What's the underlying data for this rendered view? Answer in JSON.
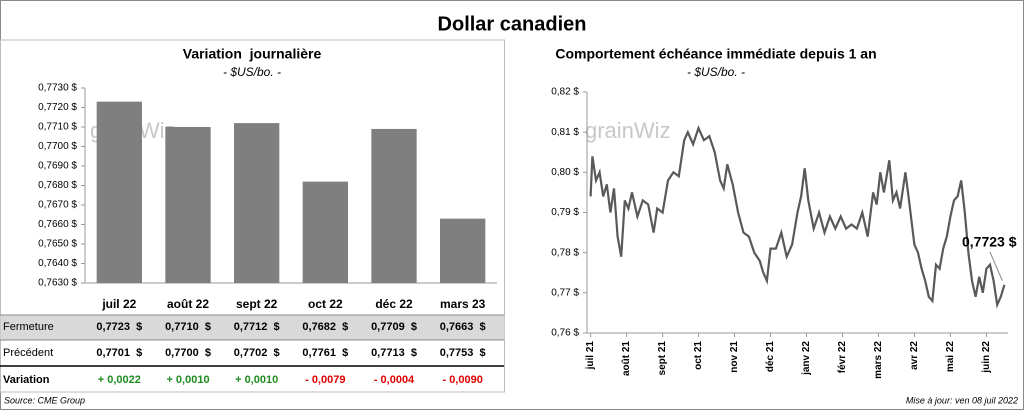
{
  "title": "Dollar canadien",
  "source": "Source: CME Group",
  "updated": "Mise à jour: ven 08 juil 2022",
  "chart_data": [
    {
      "type": "bar",
      "title": "Variation  journalière",
      "subtitle": "- $US/bo. -",
      "watermark": "grainWiz",
      "categories": [
        "juil 22",
        "août 22",
        "sept 22",
        "oct 22",
        "déc 22",
        "mars 23"
      ],
      "values": [
        0.7723,
        0.771,
        0.7712,
        0.7682,
        0.7709,
        0.7663
      ],
      "color": "#7f7f7f",
      "ylim": [
        0.763,
        0.773
      ],
      "yticks": [
        {
          "value": 0.763,
          "label": "0,7630 $"
        },
        {
          "value": 0.764,
          "label": "0,7640 $"
        },
        {
          "value": 0.765,
          "label": "0,7650 $"
        },
        {
          "value": 0.766,
          "label": "0,7660 $"
        },
        {
          "value": 0.767,
          "label": "0,7670 $"
        },
        {
          "value": 0.768,
          "label": "0,7680 $"
        },
        {
          "value": 0.769,
          "label": "0,7690 $"
        },
        {
          "value": 0.77,
          "label": "0,7700 $"
        },
        {
          "value": 0.771,
          "label": "0,7710 $"
        },
        {
          "value": 0.772,
          "label": "0,7720 $"
        },
        {
          "value": 0.773,
          "label": "0,7730 $"
        }
      ],
      "grid": false
    },
    {
      "type": "line",
      "title": "Comportement échéance immédiate depuis 1 an",
      "subtitle": "- $US/bo. -",
      "watermark": "grainWiz",
      "annotation": {
        "text": "0,7723 $"
      },
      "x": [
        0,
        0.05,
        0.15,
        0.25,
        0.35,
        0.45,
        0.55,
        0.65,
        0.75,
        0.85,
        0.95,
        1.05,
        1.15,
        1.3,
        1.45,
        1.6,
        1.75,
        1.85,
        2.0,
        2.15,
        2.3,
        2.45,
        2.6,
        2.7,
        2.85,
        3.0,
        3.15,
        3.3,
        3.45,
        3.6,
        3.7,
        3.8,
        3.95,
        4.1,
        4.25,
        4.4,
        4.55,
        4.7,
        4.8,
        4.9,
        5.0,
        5.15,
        5.3,
        5.45,
        5.6,
        5.75,
        5.85,
        5.95,
        6.05,
        6.2,
        6.35,
        6.5,
        6.65,
        6.8,
        6.95,
        7.1,
        7.25,
        7.4,
        7.55,
        7.7,
        7.85,
        7.95,
        8.05,
        8.15,
        8.3,
        8.4,
        8.5,
        8.6,
        8.75,
        8.85,
        9.0,
        9.1,
        9.2,
        9.3,
        9.4,
        9.5,
        9.6,
        9.7,
        9.8,
        9.9,
        10.0,
        10.1,
        10.2,
        10.3,
        10.4,
        10.5,
        10.6,
        10.7,
        10.8,
        10.9,
        11.0,
        11.1,
        11.2,
        11.3,
        11.4,
        11.5
      ],
      "series": [
        {
          "name": "Dollar canadien",
          "color": "#595959",
          "values": [
            0.794,
            0.804,
            0.798,
            0.8,
            0.794,
            0.797,
            0.79,
            0.796,
            0.784,
            0.779,
            0.793,
            0.791,
            0.795,
            0.789,
            0.793,
            0.792,
            0.785,
            0.791,
            0.79,
            0.798,
            0.8,
            0.799,
            0.808,
            0.81,
            0.807,
            0.811,
            0.808,
            0.809,
            0.805,
            0.798,
            0.796,
            0.802,
            0.797,
            0.79,
            0.785,
            0.784,
            0.78,
            0.778,
            0.775,
            0.773,
            0.781,
            0.781,
            0.785,
            0.779,
            0.782,
            0.79,
            0.794,
            0.801,
            0.793,
            0.786,
            0.79,
            0.785,
            0.789,
            0.786,
            0.789,
            0.786,
            0.787,
            0.786,
            0.79,
            0.784,
            0.795,
            0.792,
            0.8,
            0.795,
            0.803,
            0.793,
            0.795,
            0.791,
            0.8,
            0.793,
            0.782,
            0.78,
            0.776,
            0.773,
            0.769,
            0.768,
            0.777,
            0.776,
            0.781,
            0.784,
            0.789,
            0.793,
            0.794,
            0.798,
            0.79,
            0.78,
            0.773,
            0.769,
            0.774,
            0.77,
            0.776,
            0.777,
            0.773,
            0.767,
            0.769,
            0.772
          ]
        }
      ],
      "xlim": [
        -0.1,
        11.6
      ],
      "xticks": [
        {
          "value": 0,
          "label": "juil 21"
        },
        {
          "value": 1,
          "label": "août 21"
        },
        {
          "value": 2,
          "label": "sept 21"
        },
        {
          "value": 3,
          "label": "oct 21"
        },
        {
          "value": 4,
          "label": "nov 21"
        },
        {
          "value": 5,
          "label": "déc 21"
        },
        {
          "value": 6,
          "label": "janv 22"
        },
        {
          "value": 7,
          "label": "févr 22"
        },
        {
          "value": 8,
          "label": "mars 22"
        },
        {
          "value": 9,
          "label": "avr 22"
        },
        {
          "value": 10,
          "label": "mai 22"
        },
        {
          "value": 11,
          "label": "juin 22"
        }
      ],
      "ylim": [
        0.76,
        0.82
      ],
      "yticks": [
        {
          "value": 0.76,
          "label": "0,76 $"
        },
        {
          "value": 0.77,
          "label": "0,77 $"
        },
        {
          "value": 0.78,
          "label": "0,78 $"
        },
        {
          "value": 0.79,
          "label": "0,79 $"
        },
        {
          "value": 0.8,
          "label": "0,80 $"
        },
        {
          "value": 0.81,
          "label": "0,81 $"
        },
        {
          "value": 0.82,
          "label": "0,82 $"
        }
      ],
      "grid": false
    }
  ],
  "table": {
    "rows": [
      {
        "label": "Fermeture",
        "cells": [
          "0,7723  $",
          "0,7710  $",
          "0,7712  $",
          "0,7682  $",
          "0,7709  $",
          "0,7663  $"
        ]
      },
      {
        "label": "Précédent",
        "cells": [
          "0,7701  $",
          "0,7700  $",
          "0,7702  $",
          "0,7761  $",
          "0,7713  $",
          "0,7753  $"
        ]
      },
      {
        "label": "Variation",
        "cells": [
          "+ 0,0022",
          "+ 0,0010",
          "+ 0,0010",
          "- 0,0079",
          "- 0,0004",
          "- 0,0090"
        ],
        "colors": [
          "#1e8c1e",
          "#1e8c1e",
          "#1e8c1e",
          "#e00000",
          "#e00000",
          "#e00000"
        ]
      }
    ]
  }
}
